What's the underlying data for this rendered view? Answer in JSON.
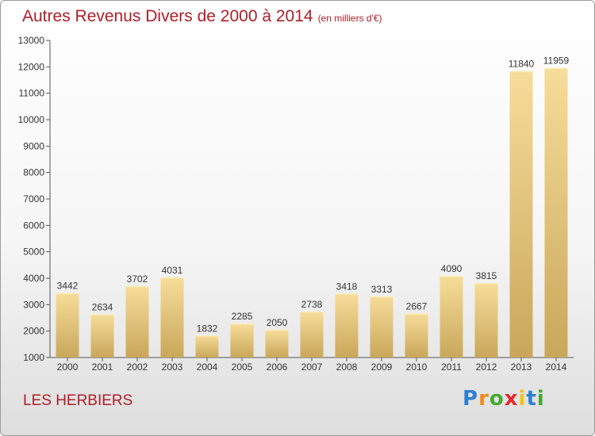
{
  "header": {
    "title": "Autres Revenus Divers de 2000 à 2014",
    "subtitle": "(en milliers d'€)"
  },
  "footer": {
    "commune": "LES HERBIERS",
    "brand_letters": [
      {
        "ch": "P",
        "color": "#2f7fd0"
      },
      {
        "ch": "r",
        "color": "#f08a1a"
      },
      {
        "ch": "o",
        "color": "#47a82f"
      },
      {
        "ch": "x",
        "color": "#e02a2a"
      },
      {
        "ch": "i",
        "color": "#f2c21b"
      },
      {
        "ch": "t",
        "color": "#2f7fd0"
      },
      {
        "ch": "i",
        "color": "#47a82f"
      }
    ]
  },
  "chart_data": {
    "type": "bar",
    "categories": [
      "2000",
      "2001",
      "2002",
      "2003",
      "2004",
      "2005",
      "2006",
      "2007",
      "2008",
      "2009",
      "2010",
      "2011",
      "2012",
      "2013",
      "2014"
    ],
    "values": [
      3442,
      2634,
      3702,
      4031,
      1832,
      2285,
      2050,
      2738,
      3418,
      3313,
      2667,
      4090,
      3815,
      11840,
      11959
    ],
    "ylim": [
      1000,
      13000
    ],
    "yticks": [
      1000,
      2000,
      3000,
      4000,
      5000,
      6000,
      7000,
      8000,
      9000,
      10000,
      11000,
      12000,
      13000
    ],
    "grid": false,
    "bar_color_light": "#f7dd9a",
    "bar_color_dark": "#c9a75a"
  }
}
